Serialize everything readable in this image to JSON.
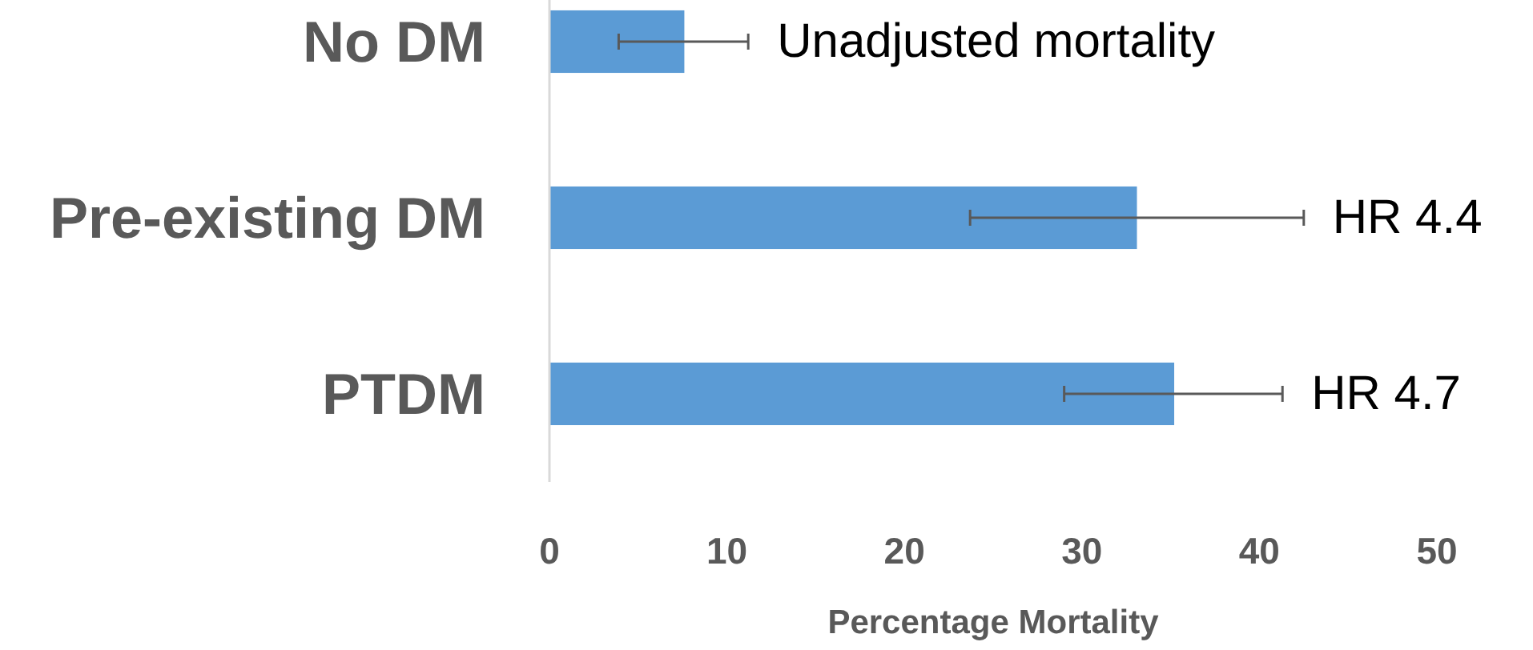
{
  "chart_data": {
    "type": "bar",
    "orientation": "horizontal",
    "categories": [
      "No DM",
      "Pre-existing DM",
      "PTDM"
    ],
    "values": [
      7.6,
      33.1,
      35.2
    ],
    "color": "#5b9bd5",
    "errors": [
      [
        3.9,
        11.2
      ],
      [
        23.7,
        42.5
      ],
      [
        29.0,
        41.3
      ]
    ],
    "xlim": [
      0,
      50
    ],
    "xticks": [
      0,
      10,
      20,
      30,
      40,
      50
    ],
    "xlabel": "Percentage Mortality",
    "grid": false,
    "annotations": [
      "Unadjusted mortality",
      "HR 4.4",
      "HR 4.7"
    ]
  }
}
